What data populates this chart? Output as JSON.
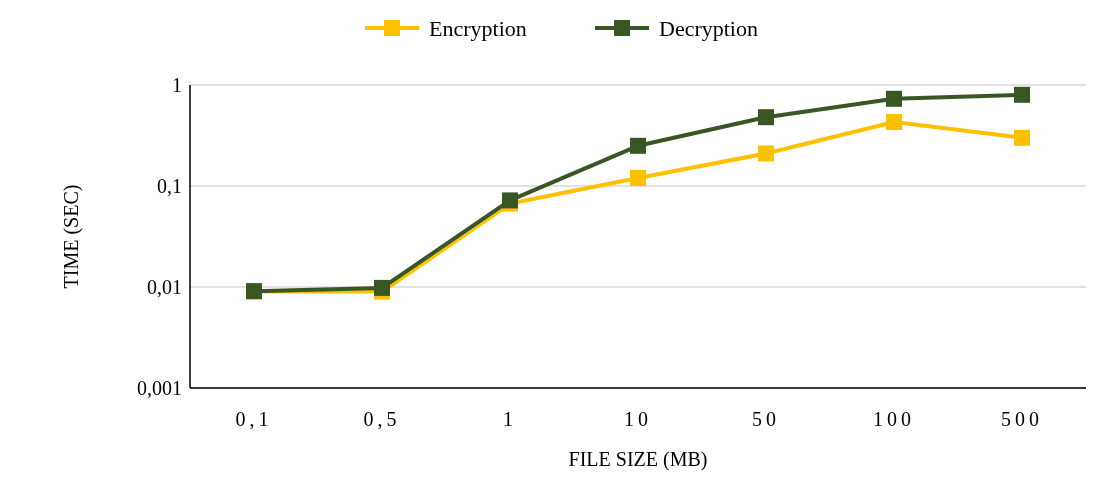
{
  "chart_data": {
    "type": "line",
    "xlabel": "FILE SIZE (MB)",
    "ylabel": "TIME (SEC)",
    "categories": [
      "0,1",
      "0,5",
      "1",
      "10",
      "50",
      "100",
      "500"
    ],
    "series": [
      {
        "name": "Encryption",
        "color": "#ffc000",
        "values": [
          0.009,
          0.009,
          0.067,
          0.12,
          0.21,
          0.43,
          0.3
        ]
      },
      {
        "name": "Decryption",
        "color": "#385723",
        "values": [
          0.0091,
          0.0098,
          0.072,
          0.25,
          0.48,
          0.73,
          0.8
        ]
      }
    ],
    "log": "y",
    "ylim": [
      0.001,
      1
    ],
    "yticks": [
      {
        "value": 0.001,
        "label": "0,001"
      },
      {
        "value": 0.01,
        "label": "0,01"
      },
      {
        "value": 0.1,
        "label": "0,1"
      },
      1
    ],
    "grid": "y",
    "legend": "top",
    "marker": "square",
    "line_style": "solid"
  }
}
